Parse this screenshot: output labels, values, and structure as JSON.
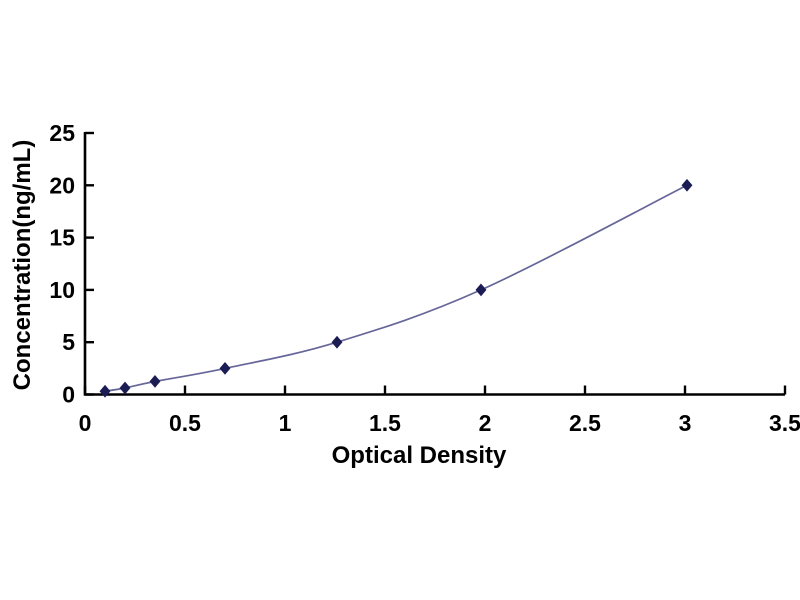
{
  "figure": {
    "background_color": "#ffffff"
  },
  "chart_data": {
    "type": "line",
    "title": "",
    "xlabel": "Optical Density",
    "ylabel": "Concentration(ng/mL)",
    "x": [
      0.1,
      0.2,
      0.35,
      0.7,
      1.26,
      1.98,
      3.01
    ],
    "y": [
      0.312,
      0.625,
      1.25,
      2.5,
      5,
      10,
      20
    ],
    "xlim": [
      0,
      3.5
    ],
    "ylim": [
      0,
      25
    ],
    "x_ticks": [
      0,
      0.5,
      1,
      1.5,
      2,
      2.5,
      3,
      3.5
    ],
    "x_tick_labels": [
      "0",
      "0.5",
      "1",
      "1.5",
      "2",
      "2.5",
      "3",
      "3.5"
    ],
    "y_ticks": [
      0,
      5,
      10,
      15,
      20,
      25
    ],
    "y_tick_labels": [
      "0",
      "5",
      "10",
      "15",
      "20",
      "25"
    ],
    "grid": false,
    "legend": false,
    "marker": "diamond",
    "line_color": "#666699",
    "marker_color": "#1c1c55",
    "axis_color": "#000000",
    "text_color": "#000000"
  }
}
